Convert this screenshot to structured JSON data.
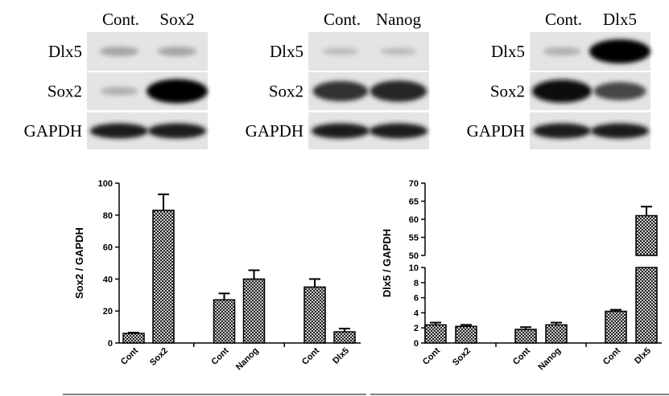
{
  "blots": [
    {
      "lanes": [
        "Cont.",
        "Sox2"
      ],
      "rows": [
        "Dlx5",
        "Sox2",
        "GAPDH"
      ]
    },
    {
      "lanes": [
        "Cont.",
        "Nanog"
      ],
      "rows": [
        "Dlx5",
        "Sox2",
        "GAPDH"
      ]
    },
    {
      "lanes": [
        "Cont.",
        "Dlx5"
      ],
      "rows": [
        "Dlx5",
        "Sox2",
        "GAPDH"
      ]
    }
  ],
  "chart_data": [
    {
      "type": "bar",
      "y_label": "Sox2 / GAPDH",
      "categories": [
        "Cont",
        "Sox2",
        "Cont",
        "Nanog",
        "Cont",
        "Dlx5"
      ],
      "values": [
        6,
        83,
        27,
        40,
        35,
        7
      ],
      "errors": [
        0.5,
        10,
        4,
        5.5,
        5,
        2
      ],
      "ylim": [
        0,
        100
      ],
      "yticks": [
        0,
        20,
        40,
        60,
        80,
        100
      ],
      "color": "#000000"
    },
    {
      "type": "bar",
      "y_label": "Dlx5 / GAPDH",
      "categories": [
        "Cont",
        "Sox2",
        "Cont",
        "Nanog",
        "Cont",
        "Dlx5"
      ],
      "values": [
        2.4,
        2.2,
        1.8,
        2.4,
        4.2,
        61
      ],
      "errors": [
        0.3,
        0.2,
        0.3,
        0.3,
        0.2,
        2.5
      ],
      "ylim": [
        0,
        70
      ],
      "axis_break": [
        10,
        50
      ],
      "yticks": [
        0,
        2,
        4,
        6,
        8,
        10,
        50,
        55,
        60,
        65,
        70
      ],
      "color": "#000000"
    }
  ]
}
